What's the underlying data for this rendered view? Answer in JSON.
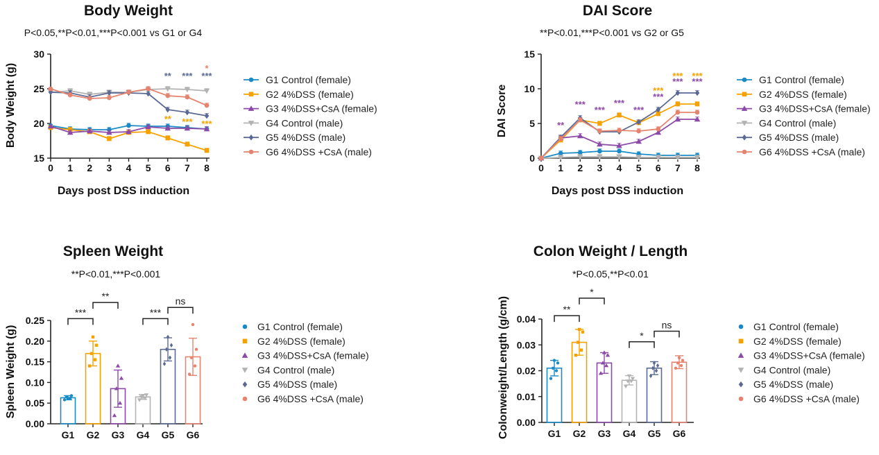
{
  "chart_data": [
    {
      "type": "line",
      "title": "Body Weight",
      "subtitle": "P<0.05,**P<0.01,***P<0.001 vs G1 or G4",
      "xlabel": "Days post DSS induction",
      "ylabel": "Body Weight (g)",
      "x": [
        0,
        1,
        2,
        3,
        4,
        5,
        6,
        7,
        8
      ],
      "ylim": [
        15,
        30
      ],
      "yticks": [
        15,
        20,
        25,
        30
      ],
      "series": [
        {
          "name": "G1 Control (female)",
          "color": "#1a8ac6",
          "marker": "circle",
          "values": [
            19.7,
            19.2,
            19.1,
            19.1,
            19.7,
            19.6,
            19.6,
            19.4,
            19.2
          ]
        },
        {
          "name": "G2 4%DSS (female)",
          "color": "#f5a200",
          "marker": "square",
          "values": [
            19.4,
            19.1,
            18.8,
            17.8,
            18.7,
            18.8,
            17.9,
            17.0,
            16.1
          ]
        },
        {
          "name": "G3 4%DSS+CsA (female)",
          "color": "#8c4aa8",
          "marker": "triangle-up",
          "values": [
            19.6,
            18.7,
            18.9,
            18.7,
            18.8,
            19.5,
            19.3,
            19.3,
            19.2
          ]
        },
        {
          "name": "G4 Control (male)",
          "color": "#b3b3b3",
          "marker": "triangle-down",
          "values": [
            24.5,
            24.7,
            24.2,
            24.5,
            24.5,
            24.9,
            25.0,
            24.9,
            24.7
          ]
        },
        {
          "name": "G5 4%DSS (male)",
          "color": "#5b6a94",
          "marker": "diamond",
          "values": [
            24.5,
            24.4,
            23.8,
            24.4,
            24.4,
            24.3,
            22.0,
            21.6,
            21.1
          ]
        },
        {
          "name": "G6 4%DSS +CsA (male)",
          "color": "#e5836f",
          "marker": "circle",
          "values": [
            25.0,
            24.1,
            23.6,
            23.7,
            24.5,
            25.0,
            24.0,
            23.8,
            22.6
          ]
        }
      ],
      "annotations": [
        {
          "x": 6,
          "y": 26.4,
          "text": "**",
          "color": "#5b6a94"
        },
        {
          "x": 7,
          "y": 26.4,
          "text": "***",
          "color": "#5b6a94"
        },
        {
          "x": 8,
          "y": 26.4,
          "text": "***",
          "color": "#5b6a94"
        },
        {
          "x": 8,
          "y": 27.5,
          "text": "*",
          "color": "#e5836f"
        },
        {
          "x": 6,
          "y": 20.2,
          "text": "**",
          "color": "#f5a200"
        },
        {
          "x": 7,
          "y": 19.8,
          "text": "***",
          "color": "#f5a200"
        },
        {
          "x": 8,
          "y": 19.5,
          "text": "***",
          "color": "#f5a200"
        }
      ]
    },
    {
      "type": "line",
      "title": "DAI Score",
      "subtitle": "**P<0.01,***P<0.001 vs G2 or G5",
      "xlabel": "Days post DSS induction",
      "ylabel": "DAI Score",
      "x": [
        0,
        1,
        2,
        3,
        4,
        5,
        6,
        7,
        8
      ],
      "ylim": [
        0,
        15
      ],
      "yticks": [
        0,
        5,
        10,
        15
      ],
      "series": [
        {
          "name": "G1 Control (female)",
          "color": "#1a8ac6",
          "marker": "circle",
          "values": [
            0,
            0.7,
            0.8,
            1.0,
            1.0,
            0.6,
            0.4,
            0.4,
            0.4
          ]
        },
        {
          "name": "G2 4%DSS (female)",
          "color": "#f5a200",
          "marker": "square",
          "values": [
            0,
            2.6,
            5.5,
            5.0,
            6.2,
            5.1,
            6.4,
            7.8,
            7.8
          ]
        },
        {
          "name": "G3 4%DSS+CsA (female)",
          "color": "#8c4aa8",
          "marker": "triangle-up",
          "values": [
            0,
            2.9,
            3.2,
            2.0,
            1.8,
            2.4,
            3.7,
            5.6,
            5.6
          ]
        },
        {
          "name": "G4 Control (male)",
          "color": "#b3b3b3",
          "marker": "triangle-down",
          "values": [
            0,
            0.1,
            0.2,
            0.2,
            0.2,
            0.1,
            0.1,
            0.1,
            0.1
          ]
        },
        {
          "name": "G5 4%DSS (male)",
          "color": "#5b6a94",
          "marker": "diamond",
          "values": [
            0,
            3.0,
            5.8,
            3.8,
            3.8,
            5.2,
            7.0,
            9.4,
            9.4
          ]
        },
        {
          "name": "G6 4%DSS +CsA (male)",
          "color": "#e5836f",
          "marker": "circle",
          "values": [
            0,
            2.8,
            5.5,
            3.9,
            4.0,
            3.9,
            4.2,
            6.6,
            6.6
          ]
        }
      ],
      "annotations": [
        {
          "x": 1,
          "y": 4.3,
          "text": "**",
          "color": "#8c4aa8"
        },
        {
          "x": 2,
          "y": 7.3,
          "text": "***",
          "color": "#8c4aa8"
        },
        {
          "x": 3,
          "y": 6.5,
          "text": "***",
          "color": "#8c4aa8"
        },
        {
          "x": 4,
          "y": 7.5,
          "text": "***",
          "color": "#8c4aa8"
        },
        {
          "x": 5,
          "y": 6.5,
          "text": "***",
          "color": "#8c4aa8"
        },
        {
          "x": 6,
          "y": 9.3,
          "text": "***",
          "color": "#f5a200"
        },
        {
          "x": 6,
          "y": 8.4,
          "text": "***",
          "color": "#8c4aa8"
        },
        {
          "x": 7,
          "y": 11.4,
          "text": "***",
          "color": "#f5a200"
        },
        {
          "x": 7,
          "y": 10.6,
          "text": "***",
          "color": "#8c4aa8"
        },
        {
          "x": 8,
          "y": 11.4,
          "text": "***",
          "color": "#f5a200"
        },
        {
          "x": 8,
          "y": 10.6,
          "text": "***",
          "color": "#8c4aa8"
        }
      ]
    },
    {
      "type": "bar",
      "title": "Spleen Weight",
      "subtitle": "**P<0.01,***P<0.001",
      "xlabel": "",
      "ylabel": "Spleen Weight (g)",
      "categories": [
        "G1",
        "G2",
        "G3",
        "G4",
        "G5",
        "G6"
      ],
      "values": [
        0.063,
        0.17,
        0.085,
        0.065,
        0.18,
        0.162
      ],
      "errors": [
        0.005,
        0.03,
        0.045,
        0.006,
        0.028,
        0.045
      ],
      "points": [
        [
          0.058,
          0.062,
          0.065,
          0.068,
          0.061
        ],
        [
          0.14,
          0.155,
          0.17,
          0.19,
          0.21
        ],
        [
          0.02,
          0.05,
          0.085,
          0.11,
          0.14
        ],
        [
          0.058,
          0.062,
          0.065,
          0.07,
          0.068
        ],
        [
          0.145,
          0.16,
          0.18,
          0.19,
          0.21
        ],
        [
          0.12,
          0.14,
          0.16,
          0.18,
          0.24
        ]
      ],
      "colors": [
        "#1a8ac6",
        "#f5a200",
        "#8c4aa8",
        "#b3b3b3",
        "#5b6a94",
        "#e5836f"
      ],
      "ylim": [
        0,
        0.25
      ],
      "yticks": [
        "0.00",
        "0.05",
        "0.10",
        "0.15",
        "0.20",
        "0.25"
      ],
      "brackets": [
        {
          "from": 0,
          "to": 1,
          "y": 0.2545,
          "label": "***"
        },
        {
          "from": 1,
          "to": 2,
          "y": 0.2935,
          "label": "**"
        },
        {
          "from": 3,
          "to": 4,
          "y": 0.2545,
          "label": "***"
        },
        {
          "from": 4,
          "to": 5,
          "y": 0.2815,
          "label": "ns"
        }
      ],
      "legend": [
        "G1 Control (female)",
        "G2 4%DSS (female)",
        "G3 4%DSS+CsA (female)",
        "G4 Control (male)",
        "G5 4%DSS (male)",
        "G6 4%DSS +CsA (male)"
      ]
    },
    {
      "type": "bar",
      "title": "Colon Weight / Length",
      "subtitle": "*P<0.05,**P<0.01",
      "xlabel": "",
      "ylabel": "Colonweight/Length (g/cm)",
      "categories": [
        "G1",
        "G2",
        "G3",
        "G4",
        "G5",
        "G6"
      ],
      "values": [
        0.021,
        0.031,
        0.023,
        0.0163,
        0.021,
        0.0233
      ],
      "errors": [
        0.003,
        0.005,
        0.004,
        0.0018,
        0.0025,
        0.0025
      ],
      "points": [
        [
          0.017,
          0.02,
          0.021,
          0.023,
          0.024
        ],
        [
          0.026,
          0.028,
          0.031,
          0.035,
          0.036
        ],
        [
          0.019,
          0.022,
          0.023,
          0.026,
          0.027
        ],
        [
          0.014,
          0.016,
          0.016,
          0.017,
          0.018
        ],
        [
          0.018,
          0.02,
          0.021,
          0.022,
          0.023
        ],
        [
          0.021,
          0.022,
          0.023,
          0.024,
          0.025
        ]
      ],
      "colors": [
        "#1a8ac6",
        "#f5a200",
        "#8c4aa8",
        "#b3b3b3",
        "#5b6a94",
        "#e5836f"
      ],
      "ylim": [
        0,
        0.04
      ],
      "yticks": [
        "0.00",
        "0.01",
        "0.02",
        "0.03",
        "0.04"
      ],
      "brackets": [
        {
          "from": 0,
          "to": 1,
          "y": 0.0413,
          "label": "**"
        },
        {
          "from": 1,
          "to": 2,
          "y": 0.0481,
          "label": "*"
        },
        {
          "from": 3,
          "to": 4,
          "y": 0.0312,
          "label": "*"
        },
        {
          "from": 4,
          "to": 5,
          "y": 0.0353,
          "label": "ns"
        }
      ],
      "legend": [
        "G1 Control (female)",
        "G2 4%DSS (female)",
        "G3 4%DSS+CsA (female)",
        "G4 Control (male)",
        "G5 4%DSS (male)",
        "G6 4%DSS +CsA (male)"
      ]
    }
  ]
}
